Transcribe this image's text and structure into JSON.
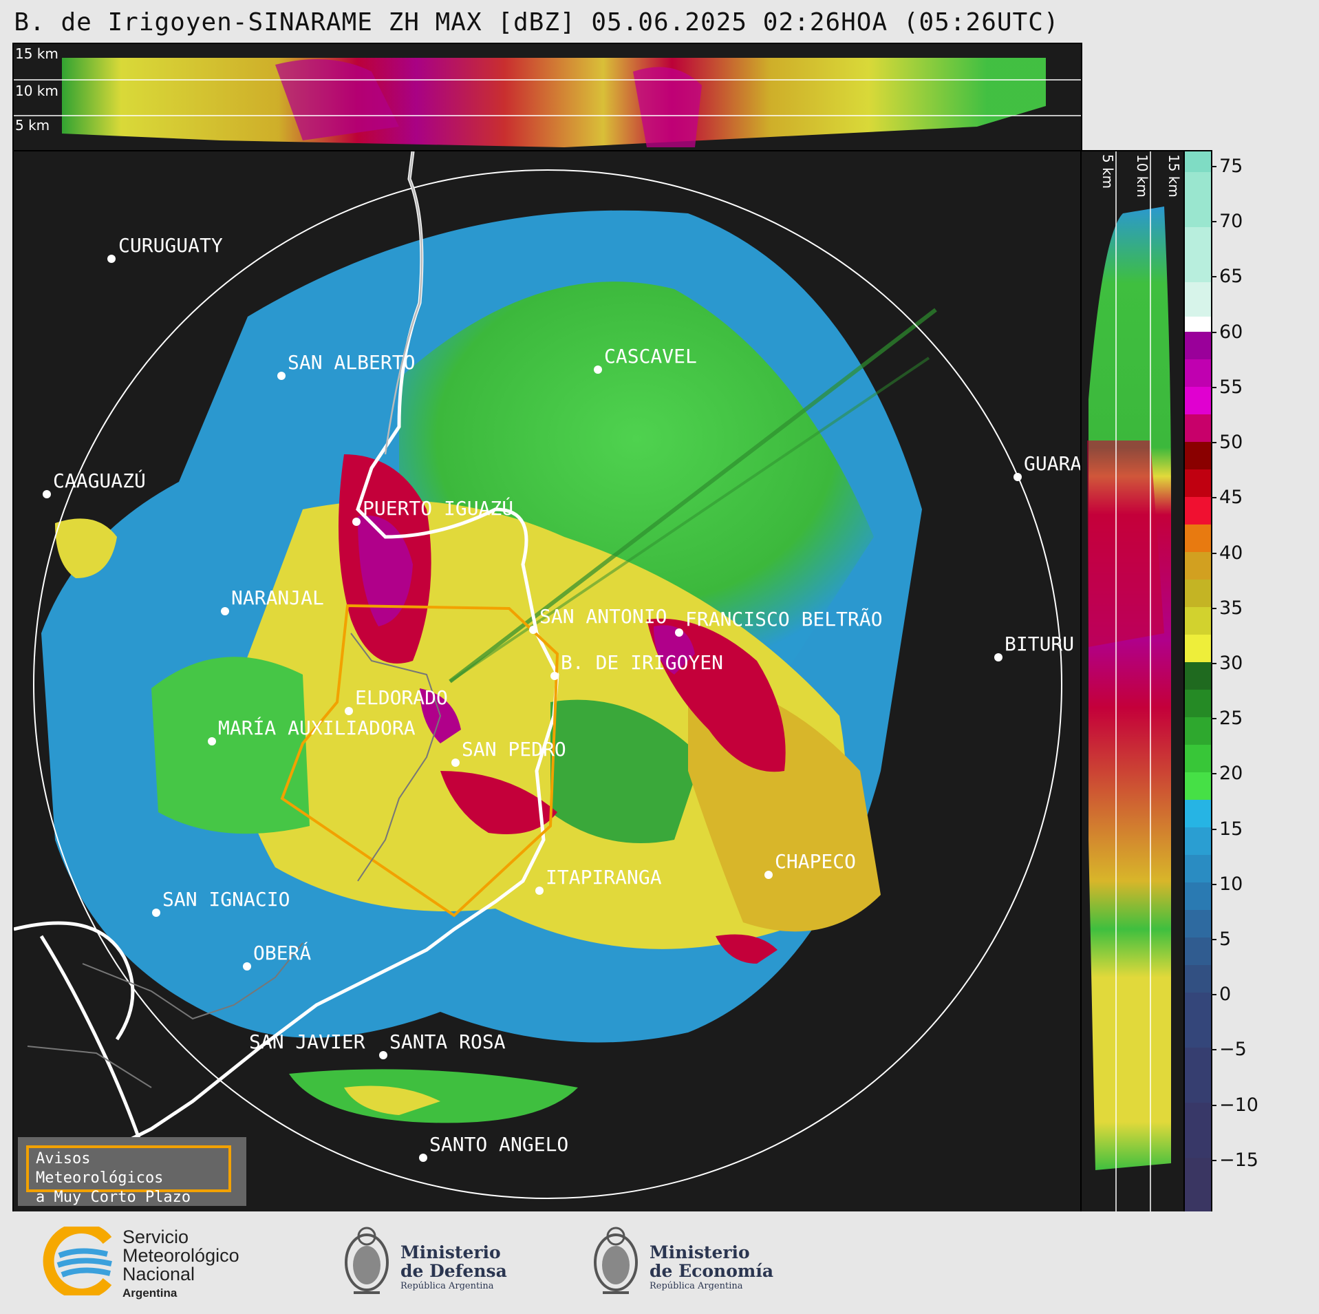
{
  "title": "B. de Irigoyen-SINARAME ZH MAX [dBZ] 05.06.2025 02:26HOA (05:26UTC)",
  "top_panel": {
    "height_labels": [
      "15 km",
      "10 km",
      "5 km"
    ]
  },
  "side_panel": {
    "height_labels": [
      "5 km",
      "10 km",
      "15 km"
    ]
  },
  "colorbar": {
    "unit": "dBZ",
    "ticks": [
      "75",
      "70",
      "65",
      "60",
      "55",
      "50",
      "45",
      "40",
      "35",
      "30",
      "25",
      "20",
      "15",
      "10",
      "5",
      "0",
      "−5",
      "−10",
      "−15"
    ],
    "range": [
      -19.5,
      76.5
    ]
  },
  "cities": [
    {
      "name": "CURUGUATY"
    },
    {
      "name": "SAN ALBERTO"
    },
    {
      "name": "CASCAVEL"
    },
    {
      "name": "CAAGUAZÚ"
    },
    {
      "name": "GUARA"
    },
    {
      "name": "PUERTO IGUAZÚ"
    },
    {
      "name": "NARANJAL"
    },
    {
      "name": "SAN ANTONIO"
    },
    {
      "name": "FRANCISCO BELTRÃO"
    },
    {
      "name": "BITURU"
    },
    {
      "name": "B. DE IRIGOYEN"
    },
    {
      "name": "ELDORADO"
    },
    {
      "name": "MARÍA AUXILIADORA"
    },
    {
      "name": "SAN PEDRO"
    },
    {
      "name": "CHAPECO"
    },
    {
      "name": "ITAPIRANGA"
    },
    {
      "name": "SAN IGNACIO"
    },
    {
      "name": "OBERÁ"
    },
    {
      "name": "SAN JAVIER"
    },
    {
      "name": "SANTA ROSA"
    },
    {
      "name": "SANTO ANGELO"
    }
  ],
  "warning_box": {
    "line1": "Avisos Meteorológicos",
    "line2": "a Muy Corto Plazo"
  },
  "footer": {
    "smn": {
      "line1": "Servicio",
      "line2": "Meteorológico",
      "line3": "Nacional",
      "line4": "Argentina"
    },
    "defensa": {
      "line1": "Ministerio",
      "line2": "de Defensa",
      "line3": "República Argentina"
    },
    "economia": {
      "line1": "Ministerio",
      "line2": "de Economía",
      "line3": "República Argentina"
    }
  },
  "colors": {
    "background": "#1b1b1b",
    "warning_accent": "#f2a100",
    "smn_orange": "#f6a800",
    "smn_blue": "#3aa0dc"
  }
}
